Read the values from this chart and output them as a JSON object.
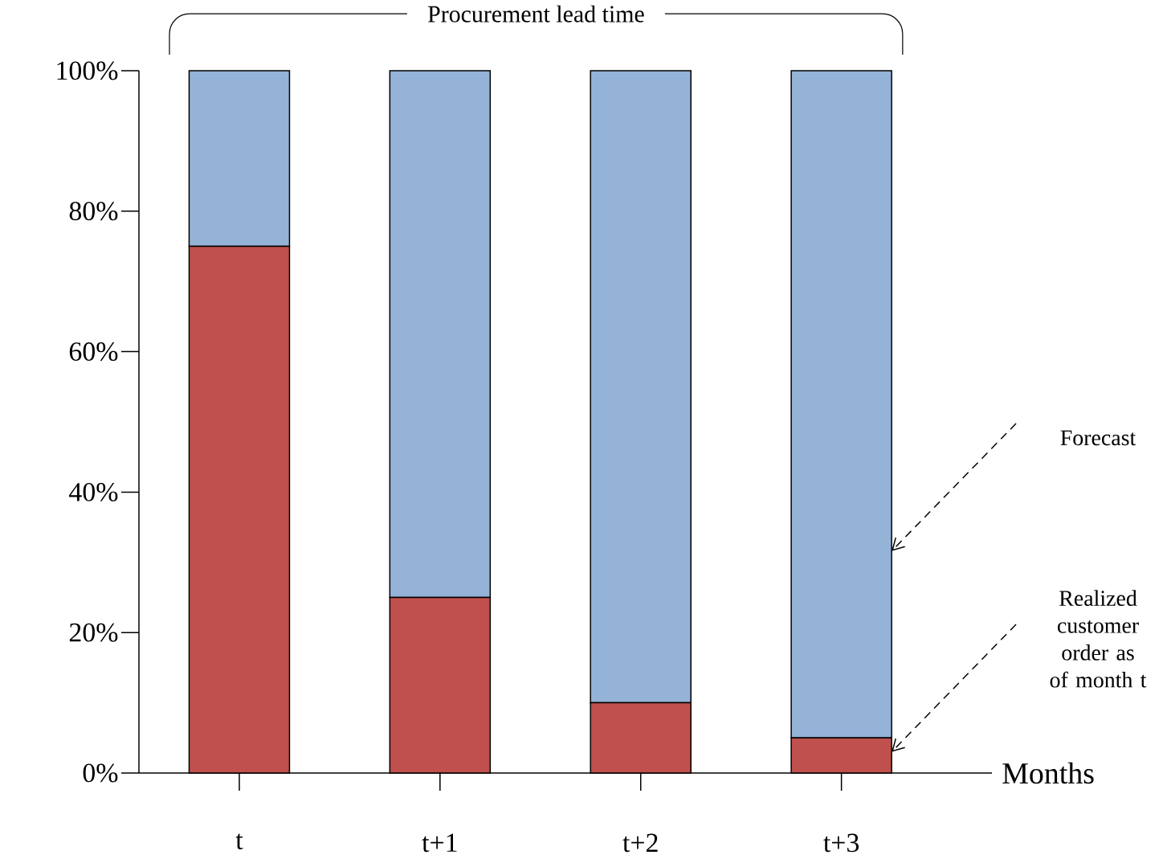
{
  "chart_data": {
    "type": "bar",
    "stacked": true,
    "xlabel": "Months",
    "categories": [
      "t",
      "t+1",
      "t+2",
      "t+3"
    ],
    "series": [
      {
        "name": "Realized customer order as of month t",
        "color": "#c0504d",
        "values": [
          75,
          25,
          10,
          5
        ]
      },
      {
        "name": "Forecast",
        "color": "#95b3d7",
        "values": [
          25,
          75,
          90,
          95
        ]
      }
    ],
    "ylim": [
      0,
      100
    ],
    "yticks": [
      {
        "value": 0,
        "label": "0%"
      },
      {
        "value": 20,
        "label": "20%"
      },
      {
        "value": 40,
        "label": "40%"
      },
      {
        "value": 60,
        "label": "60%"
      },
      {
        "value": 80,
        "label": "80%"
      },
      {
        "value": 100,
        "label": "100%"
      }
    ],
    "annotations": [
      "Procurement lead time"
    ],
    "grid": false
  }
}
